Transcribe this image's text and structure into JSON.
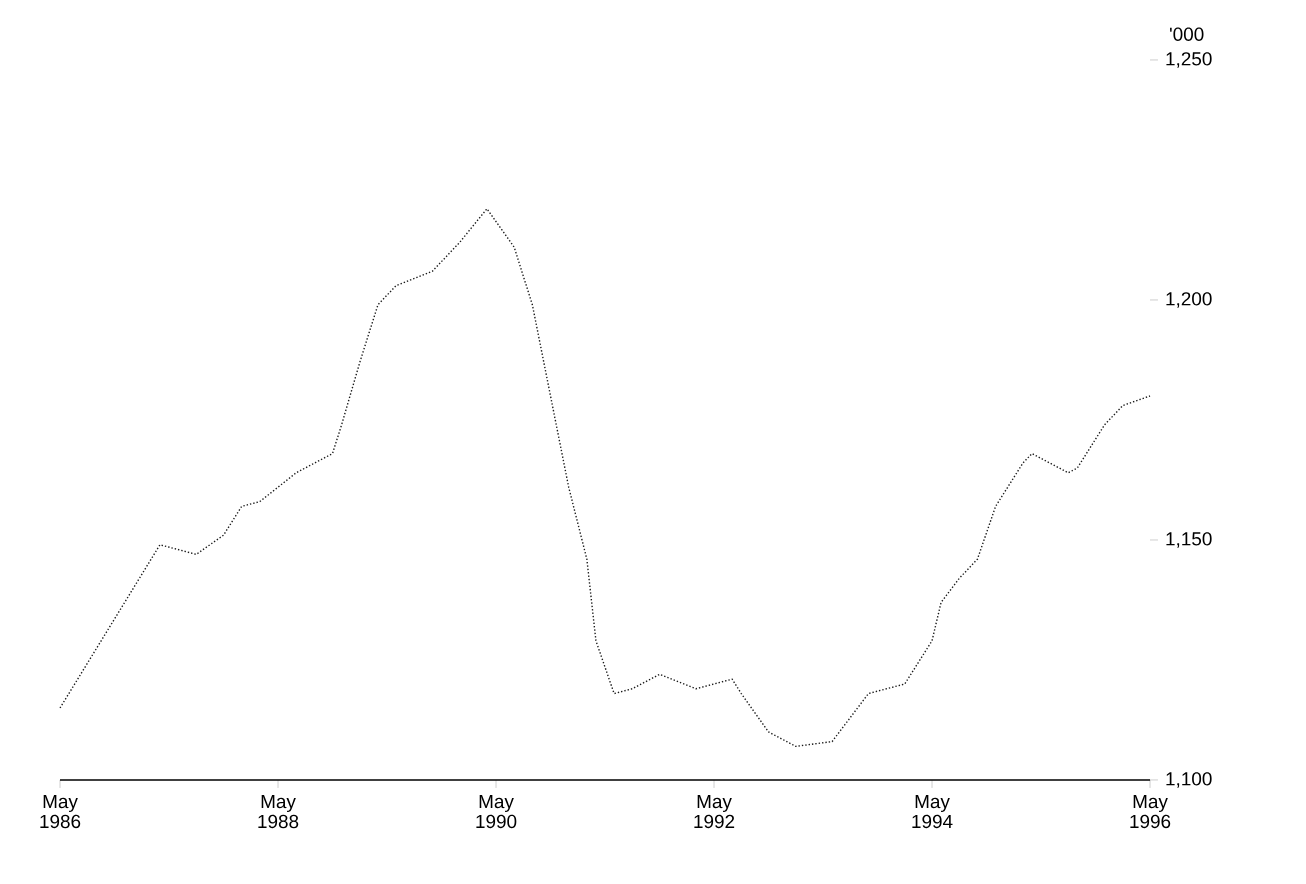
{
  "chart_data": {
    "type": "line",
    "ylabel": "'000",
    "color": "#1a1a1a",
    "line_style": "dotted",
    "x": [
      "1986-05",
      "1987-04",
      "1987-08",
      "1987-11",
      "1988-01",
      "1988-03",
      "1988-07",
      "1988-11",
      "1988-12",
      "1989-02",
      "1989-04",
      "1989-06",
      "1989-10",
      "1990-01",
      "1990-04",
      "1990-07",
      "1990-09",
      "1990-11",
      "1991-01",
      "1991-03",
      "1991-04",
      "1991-06",
      "1991-08",
      "1991-11",
      "1992-03",
      "1992-07",
      "1992-08",
      "1992-11",
      "1993-02",
      "1993-06",
      "1993-10",
      "1994-02",
      "1994-05",
      "1994-06",
      "1994-08",
      "1994-10",
      "1994-12",
      "1995-03",
      "1995-04",
      "1995-08",
      "1995-09",
      "1995-12",
      "1996-02",
      "1996-05"
    ],
    "values": [
      1115,
      1149,
      1147,
      1151,
      1157,
      1158,
      1164,
      1168,
      1174,
      1187,
      1199,
      1203,
      1206,
      1212,
      1219,
      1211,
      1199,
      1180,
      1161,
      1146,
      1129,
      1118,
      1119,
      1122,
      1119,
      1121,
      1118,
      1110,
      1107,
      1108,
      1118,
      1120,
      1129,
      1137,
      1142,
      1146,
      1157,
      1166,
      1168,
      1164,
      1165,
      1174,
      1178,
      1180
    ],
    "xlim": [
      "1986-05",
      "1996-05"
    ],
    "ylim": [
      1100,
      1250
    ],
    "xticks": [
      {
        "value": "1986-05",
        "label": "May 1986"
      },
      {
        "value": "1988-05",
        "label": "May 1988"
      },
      {
        "value": "1990-05",
        "label": "May 1990"
      },
      {
        "value": "1992-05",
        "label": "May 1992"
      },
      {
        "value": "1994-05",
        "label": "May 1994"
      },
      {
        "value": "1996-05",
        "label": "May 1996"
      }
    ],
    "yticks": [
      {
        "value": 1100,
        "label": "1,100"
      },
      {
        "value": 1150,
        "label": "1,150"
      },
      {
        "value": 1200,
        "label": "1,200"
      },
      {
        "value": 1250,
        "label": "1,250"
      }
    ]
  }
}
